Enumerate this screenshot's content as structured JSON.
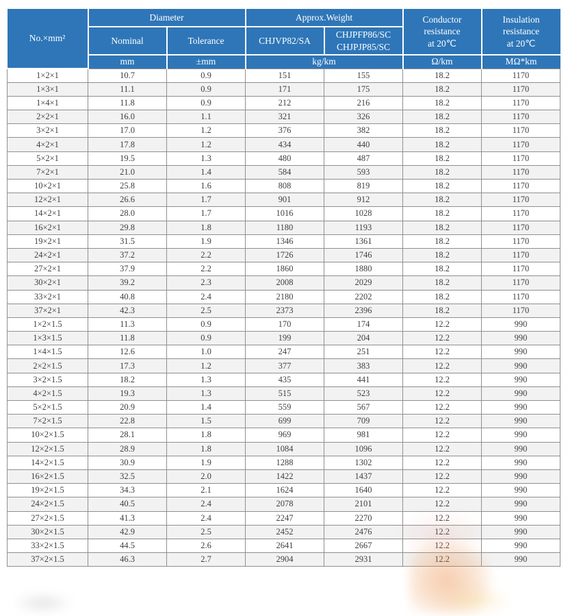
{
  "colors": {
    "header_bg": "#2E76B8",
    "header_text": "#FFFFFF",
    "row_stripe": "#F2F2F2",
    "body_border": "#8F8F8F",
    "body_text": "#3F3F3F"
  },
  "chart_data": {
    "type": "table",
    "header": {
      "col_no": "No.×mm²",
      "diameter": {
        "group": "Diameter",
        "nominal": "Nominal",
        "tolerance": "Tolerance",
        "unit_nominal": "mm",
        "unit_tolerance": "±mm"
      },
      "weight": {
        "group": "Approx.Weight",
        "col1": "CHJVP82/SA",
        "col2": "CHJPFP86/SC\nCHJPJP85/SC",
        "unit": "kg/km"
      },
      "conductor": {
        "label": "Conductor\nresistance\nat 20℃",
        "unit": "Ω/km"
      },
      "insulation": {
        "label": "Insulation\nresistance\nat 20℃",
        "unit": "MΩ*km"
      }
    },
    "rows": [
      [
        "1×2×1",
        "10.7",
        "0.9",
        "151",
        "155",
        "18.2",
        "1170"
      ],
      [
        "1×3×1",
        "11.1",
        "0.9",
        "171",
        "175",
        "18.2",
        "1170"
      ],
      [
        "1×4×1",
        "11.8",
        "0.9",
        "212",
        "216",
        "18.2",
        "1170"
      ],
      [
        "2×2×1",
        "16.0",
        "1.1",
        "321",
        "326",
        "18.2",
        "1170"
      ],
      [
        "3×2×1",
        "17.0",
        "1.2",
        "376",
        "382",
        "18.2",
        "1170"
      ],
      [
        "4×2×1",
        "17.8",
        "1.2",
        "434",
        "440",
        "18.2",
        "1170"
      ],
      [
        "5×2×1",
        "19.5",
        "1.3",
        "480",
        "487",
        "18.2",
        "1170"
      ],
      [
        "7×2×1",
        "21.0",
        "1.4",
        "584",
        "593",
        "18.2",
        "1170"
      ],
      [
        "10×2×1",
        "25.8",
        "1.6",
        "808",
        "819",
        "18.2",
        "1170"
      ],
      [
        "12×2×1",
        "26.6",
        "1.7",
        "901",
        "912",
        "18.2",
        "1170"
      ],
      [
        "14×2×1",
        "28.0",
        "1.7",
        "1016",
        "1028",
        "18.2",
        "1170"
      ],
      [
        "16×2×1",
        "29.8",
        "1.8",
        "1180",
        "1193",
        "18.2",
        "1170"
      ],
      [
        "19×2×1",
        "31.5",
        "1.9",
        "1346",
        "1361",
        "18.2",
        "1170"
      ],
      [
        "24×2×1",
        "37.2",
        "2.2",
        "1726",
        "1746",
        "18.2",
        "1170"
      ],
      [
        "27×2×1",
        "37.9",
        "2.2",
        "1860",
        "1880",
        "18.2",
        "1170"
      ],
      [
        "30×2×1",
        "39.2",
        "2.3",
        "2008",
        "2029",
        "18.2",
        "1170"
      ],
      [
        "33×2×1",
        "40.8",
        "2.4",
        "2180",
        "2202",
        "18.2",
        "1170"
      ],
      [
        "37×2×1",
        "42.3",
        "2.5",
        "2373",
        "2396",
        "18.2",
        "1170"
      ],
      [
        "1×2×1.5",
        "11.3",
        "0.9",
        "170",
        "174",
        "12.2",
        "990"
      ],
      [
        "1×3×1.5",
        "11.8",
        "0.9",
        "199",
        "204",
        "12.2",
        "990"
      ],
      [
        "1×4×1.5",
        "12.6",
        "1.0",
        "247",
        "251",
        "12.2",
        "990"
      ],
      [
        "2×2×1.5",
        "17.3",
        "1.2",
        "377",
        "383",
        "12.2",
        "990"
      ],
      [
        "3×2×1.5",
        "18.2",
        "1.3",
        "435",
        "441",
        "12.2",
        "990"
      ],
      [
        "4×2×1.5",
        "19.3",
        "1.3",
        "515",
        "523",
        "12.2",
        "990"
      ],
      [
        "5×2×1.5",
        "20.9",
        "1.4",
        "559",
        "567",
        "12.2",
        "990"
      ],
      [
        "7×2×1.5",
        "22.8",
        "1.5",
        "699",
        "709",
        "12.2",
        "990"
      ],
      [
        "10×2×1.5",
        "28.1",
        "1.8",
        "969",
        "981",
        "12.2",
        "990"
      ],
      [
        "12×2×1.5",
        "28.9",
        "1.8",
        "1084",
        "1096",
        "12.2",
        "990"
      ],
      [
        "14×2×1.5",
        "30.9",
        "1.9",
        "1288",
        "1302",
        "12.2",
        "990"
      ],
      [
        "16×2×1.5",
        "32.5",
        "2.0",
        "1422",
        "1437",
        "12.2",
        "990"
      ],
      [
        "19×2×1.5",
        "34.3",
        "2.1",
        "1624",
        "1640",
        "12.2",
        "990"
      ],
      [
        "24×2×1.5",
        "40.5",
        "2.4",
        "2078",
        "2101",
        "12.2",
        "990"
      ],
      [
        "27×2×1.5",
        "41.3",
        "2.4",
        "2247",
        "2270",
        "12.2",
        "990"
      ],
      [
        "30×2×1.5",
        "42.9",
        "2.5",
        "2452",
        "2476",
        "12.2",
        "990"
      ],
      [
        "33×2×1.5",
        "44.5",
        "2.6",
        "2641",
        "2667",
        "12.2",
        "990"
      ],
      [
        "37×2×1.5",
        "46.3",
        "2.7",
        "2904",
        "2931",
        "12.2",
        "990"
      ]
    ]
  }
}
